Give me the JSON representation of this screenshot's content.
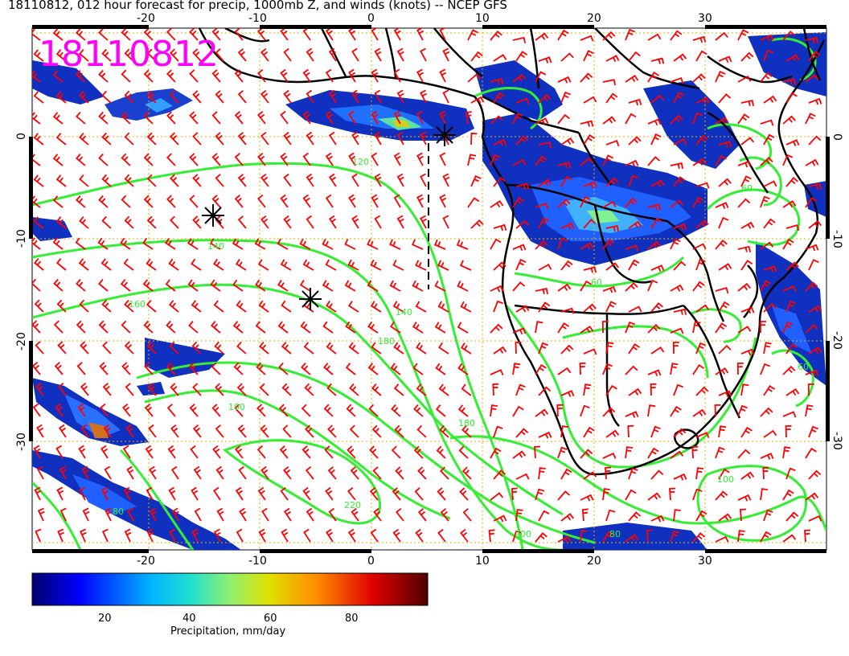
{
  "title": "18110812, 012 hour forecast for precip, 1000mb Z, and winds (knots) -- NCEP GFS",
  "stamp": "18110812",
  "map": {
    "lon_range": [
      -30,
      41
    ],
    "lat_range": [
      -40,
      10
    ],
    "lon_ticks": [
      "-20",
      "-10",
      "0",
      "10",
      "20",
      "30"
    ],
    "lat_ticks": [
      "0",
      "-10",
      "-20",
      "-30"
    ],
    "grid": "dotted orange every 10 degrees",
    "colors": {
      "wind_barbs": "#ff0000",
      "height_contours": "#33ee33",
      "coastlines": "#000000",
      "grid": "#e0b000"
    },
    "contour_labels": [
      "120",
      "140",
      "160",
      "180",
      "200",
      "220",
      "60",
      "80",
      "100"
    ],
    "markers": [
      "asterisk",
      "asterisk",
      "asterisk"
    ]
  },
  "colorbar": {
    "title": "Precipitation, mm/day",
    "ticks": [
      "20",
      "40",
      "60",
      "80"
    ],
    "range": [
      0,
      100
    ],
    "colors": [
      "#000080",
      "#0000ff",
      "#00a0ff",
      "#00e0e0",
      "#80ff80",
      "#e0e000",
      "#ff8000",
      "#e00000",
      "#600000"
    ]
  }
}
